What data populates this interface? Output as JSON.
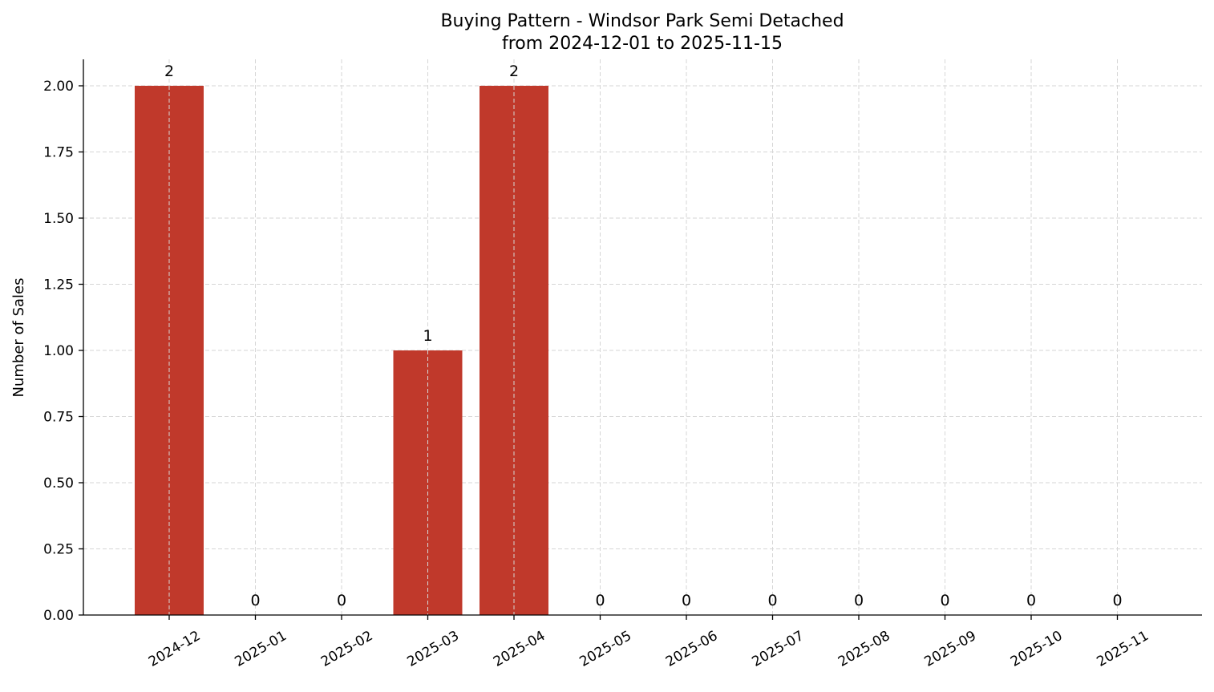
{
  "chart_data": {
    "type": "bar",
    "title": "Buying Pattern - Windsor Park Semi Detached",
    "subtitle": "from 2024-12-01 to 2025-11-15",
    "xlabel": "",
    "ylabel": "Number of Sales",
    "categories": [
      "2024-12",
      "2025-01",
      "2025-02",
      "2025-03",
      "2025-04",
      "2025-05",
      "2025-06",
      "2025-07",
      "2025-08",
      "2025-09",
      "2025-10",
      "2025-11"
    ],
    "values": [
      2,
      0,
      0,
      1,
      2,
      0,
      0,
      0,
      0,
      0,
      0,
      0
    ],
    "data_labels": [
      "2",
      "0",
      "0",
      "1",
      "2",
      "0",
      "0",
      "0",
      "0",
      "0",
      "0",
      "0"
    ],
    "ylim": [
      0,
      2.1
    ],
    "yticks": [
      "0.00",
      "0.25",
      "0.50",
      "0.75",
      "1.00",
      "1.25",
      "1.50",
      "1.75",
      "2.00"
    ],
    "grid": true,
    "bar_color": "#c0392b"
  }
}
